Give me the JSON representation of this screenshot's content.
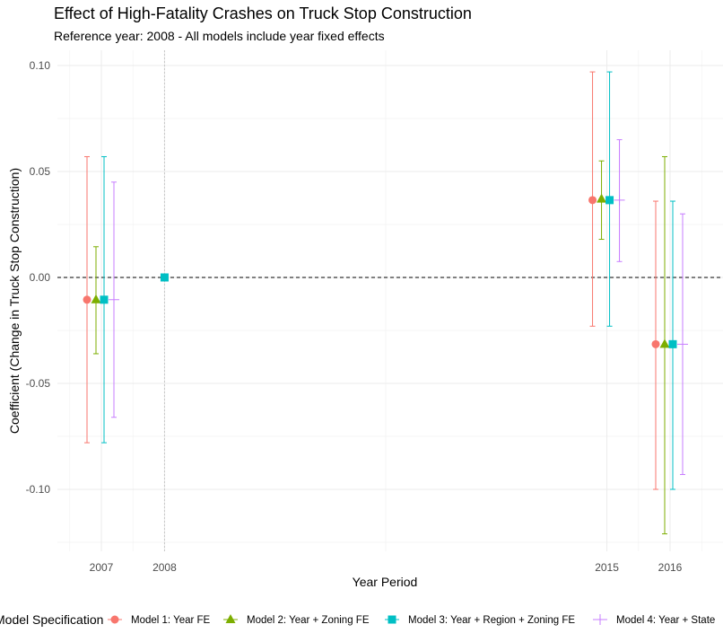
{
  "title": "Effect of High-Fatality Crashes on Truck Stop Construction",
  "subtitle": "Reference year: 2008 - All models include year fixed effects",
  "chart_data": {
    "type": "scatter",
    "xlabel": "Year Period",
    "ylabel": "Coefficient (Change in Truck Stop Construction)",
    "x_ticks": [
      "2007",
      "2008",
      "2015",
      "2016"
    ],
    "y_ticks": [
      "0.10",
      "0.05",
      "0.00",
      "-0.05",
      "-0.10"
    ],
    "ylim": [
      -0.125,
      0.105
    ],
    "reference_line": 0,
    "grid": true,
    "legend": {
      "title": "Model Specification",
      "position": "bottom"
    },
    "series": [
      {
        "name": "Model 1: Year FE",
        "color": "#F8766D",
        "shape": "circle",
        "points": [
          {
            "x": "2007",
            "estimate": -0.0105,
            "lower": -0.078,
            "upper": 0.057
          },
          {
            "x": "2015",
            "estimate": 0.0365,
            "lower": -0.023,
            "upper": 0.097
          },
          {
            "x": "2016",
            "estimate": -0.0315,
            "lower": -0.1,
            "upper": 0.036
          }
        ]
      },
      {
        "name": "Model 2: Year + Zoning FE",
        "color": "#7CAE00",
        "shape": "triangle",
        "points": [
          {
            "x": "2007",
            "estimate": -0.0105,
            "lower": -0.036,
            "upper": 0.0145
          },
          {
            "x": "2015",
            "estimate": 0.037,
            "lower": 0.018,
            "upper": 0.055
          },
          {
            "x": "2016",
            "estimate": -0.0315,
            "lower": -0.121,
            "upper": 0.057
          }
        ]
      },
      {
        "name": "Model 3: Year + Region + Zoning FE",
        "color": "#00BFC4",
        "shape": "square",
        "points": [
          {
            "x": "2007",
            "estimate": -0.0105,
            "lower": -0.078,
            "upper": 0.057
          },
          {
            "x": "2008",
            "estimate": 0.0,
            "lower": null,
            "upper": null
          },
          {
            "x": "2015",
            "estimate": 0.0365,
            "lower": -0.023,
            "upper": 0.097
          },
          {
            "x": "2016",
            "estimate": -0.0315,
            "lower": -0.1,
            "upper": 0.036
          }
        ]
      },
      {
        "name": "Model 4: Year + State",
        "color": "#C77CFF",
        "shape": "plus",
        "points": [
          {
            "x": "2007",
            "estimate": -0.0105,
            "lower": -0.066,
            "upper": 0.045
          },
          {
            "x": "2015",
            "estimate": 0.0365,
            "lower": 0.0075,
            "upper": 0.065
          },
          {
            "x": "2016",
            "estimate": -0.0315,
            "lower": -0.093,
            "upper": 0.03
          }
        ]
      }
    ]
  }
}
